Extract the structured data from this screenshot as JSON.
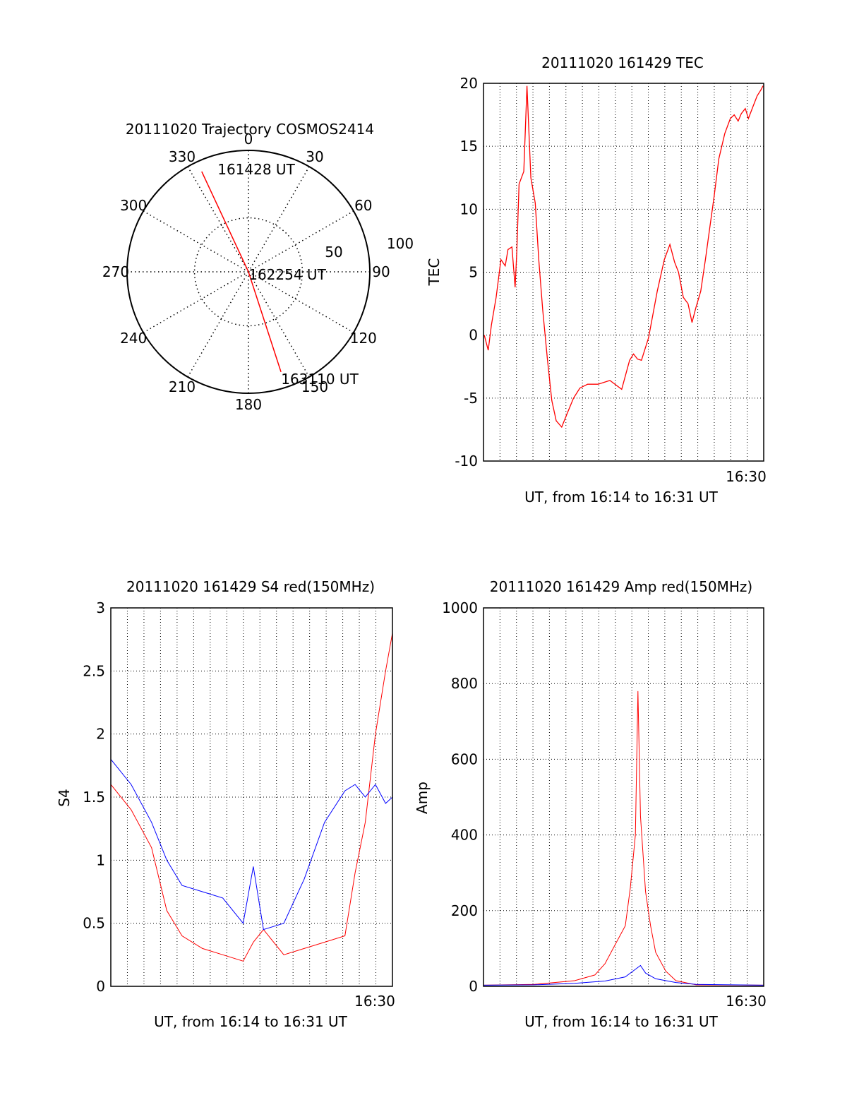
{
  "chart_data": [
    {
      "type": "polar",
      "title": "20111020 Trajectory COSMOS2414",
      "azimuth_labels": [
        "0",
        "30",
        "60",
        "90",
        "120",
        "150",
        "180",
        "210",
        "240",
        "270",
        "300",
        "330"
      ],
      "radius_labels": [
        "50",
        "100"
      ],
      "grid": true,
      "series": [
        {
          "color": "#ff0000",
          "points": [
            {
              "azimuth": 335,
              "elevation": 8,
              "label": "161428 UT"
            },
            {
              "azimuth": 90,
              "elevation": 90,
              "label": "162254 UT"
            },
            {
              "azimuth": 162,
              "elevation": 12,
              "label": "163110 UT"
            }
          ]
        }
      ]
    },
    {
      "type": "line",
      "title": "20111020 161429 TEC",
      "xlabel": "UT, from 16:14 to 16:31 UT",
      "ylabel": "TEC",
      "xlim": [
        16.24,
        16.5167
      ],
      "ylim": [
        -10,
        20
      ],
      "yticks": [
        "-10",
        "-5",
        "0",
        "5",
        "10",
        "15",
        "20"
      ],
      "xtick_labels": [
        {
          "x": 16.5,
          "label": "16:30"
        }
      ],
      "grid": true,
      "series": [
        {
          "color": "#ff0000",
          "x": [
            16.2408,
            16.2447,
            16.2478,
            16.2525,
            16.2572,
            16.2615,
            16.2642,
            16.2681,
            16.2712,
            16.2728,
            16.2751,
            16.2798,
            16.2829,
            16.2868,
            16.2911,
            16.2946,
            16.2985,
            16.3032,
            16.3075,
            16.3118,
            16.3172,
            16.3227,
            16.3289,
            16.3352,
            16.3429,
            16.3531,
            16.3648,
            16.3765,
            16.3843,
            16.3882,
            16.3921,
            16.396,
            16.403,
            16.4116,
            16.4186,
            16.4241,
            16.4287,
            16.4326,
            16.4373,
            16.442,
            16.4459,
            16.4498,
            16.4545,
            16.4591,
            16.4634,
            16.4677,
            16.4724,
            16.4782,
            16.4837,
            16.4876,
            16.4915,
            16.4946,
            16.4985,
            16.5016,
            16.5063,
            16.5102,
            16.5141,
            16.516
          ],
          "y": [
            0,
            -1.2,
            0.8,
            3,
            6,
            5.5,
            6.8,
            7,
            3.8,
            6.5,
            12,
            13,
            19.8,
            12.5,
            10.5,
            6,
            2,
            -2,
            -5.2,
            -6.8,
            -7.3,
            -6.2,
            -5,
            -4.2,
            -3.9,
            -3.9,
            -3.6,
            -4.3,
            -2,
            -1.5,
            -1.9,
            -2,
            -0.2,
            3.5,
            6,
            7.2,
            5.8,
            5,
            3,
            2.5,
            1,
            2.2,
            3.5,
            6,
            8.5,
            11,
            14,
            16,
            17.2,
            17.5,
            17,
            17.6,
            18,
            17.2,
            18.2,
            19,
            19.5,
            19.8
          ]
        }
      ]
    },
    {
      "type": "line",
      "title": "20111020 161429 S4 red(150MHz)",
      "xlabel": "UT, from 16:14 to 16:31 UT",
      "ylabel": "S4",
      "xlim": [
        16.24,
        16.5167
      ],
      "ylim": [
        0,
        3
      ],
      "yticks": [
        "0",
        "0.5",
        "1",
        "1.5",
        "2",
        "2.5",
        "3"
      ],
      "xtick_labels": [
        {
          "x": 16.5,
          "label": "16:30"
        }
      ],
      "grid": true,
      "series": [
        {
          "color": "#ff0000",
          "x": [
            16.24,
            16.26,
            16.28,
            16.295,
            16.31,
            16.33,
            16.35,
            16.37,
            16.38,
            16.39,
            16.41,
            16.43,
            16.45,
            16.47,
            16.48,
            16.49,
            16.5,
            16.51,
            16.5167
          ],
          "y": [
            1.6,
            1.4,
            1.1,
            0.6,
            0.4,
            0.3,
            0.25,
            0.2,
            0.35,
            0.45,
            0.25,
            0.3,
            0.35,
            0.4,
            0.9,
            1.3,
            2.0,
            2.5,
            2.8
          ]
        },
        {
          "color": "#0000ff",
          "x": [
            16.24,
            16.26,
            16.28,
            16.295,
            16.31,
            16.33,
            16.35,
            16.37,
            16.38,
            16.39,
            16.41,
            16.43,
            16.45,
            16.47,
            16.48,
            16.49,
            16.5,
            16.51,
            16.5167
          ],
          "y": [
            1.8,
            1.6,
            1.3,
            1.0,
            0.8,
            0.75,
            0.7,
            0.5,
            0.95,
            0.45,
            0.5,
            0.85,
            1.3,
            1.55,
            1.6,
            1.5,
            1.6,
            1.45,
            1.5
          ]
        }
      ]
    },
    {
      "type": "line",
      "title": "20111020 161429 Amp red(150MHz)",
      "xlabel": "UT, from 16:14 to 16:31 UT",
      "ylabel": "Amp",
      "xlim": [
        16.24,
        16.5167
      ],
      "ylim": [
        0,
        1000
      ],
      "yticks": [
        "0",
        "200",
        "400",
        "600",
        "800",
        "1000"
      ],
      "xtick_labels": [
        {
          "x": 16.5,
          "label": "16:30"
        }
      ],
      "grid": true,
      "series": [
        {
          "color": "#ff0000",
          "x": [
            16.24,
            16.29,
            16.33,
            16.35,
            16.36,
            16.37,
            16.38,
            16.385,
            16.39,
            16.3925,
            16.395,
            16.4,
            16.405,
            16.41,
            16.42,
            16.43,
            16.45,
            16.5167
          ],
          "y": [
            3,
            5,
            15,
            30,
            60,
            110,
            160,
            260,
            400,
            780,
            450,
            250,
            160,
            90,
            40,
            15,
            4,
            3
          ]
        },
        {
          "color": "#0000ff",
          "x": [
            16.24,
            16.29,
            16.33,
            16.36,
            16.38,
            16.39,
            16.395,
            16.4,
            16.41,
            16.43,
            16.45,
            16.5167
          ],
          "y": [
            3,
            4,
            8,
            14,
            25,
            45,
            55,
            35,
            20,
            10,
            5,
            3
          ]
        }
      ]
    }
  ]
}
